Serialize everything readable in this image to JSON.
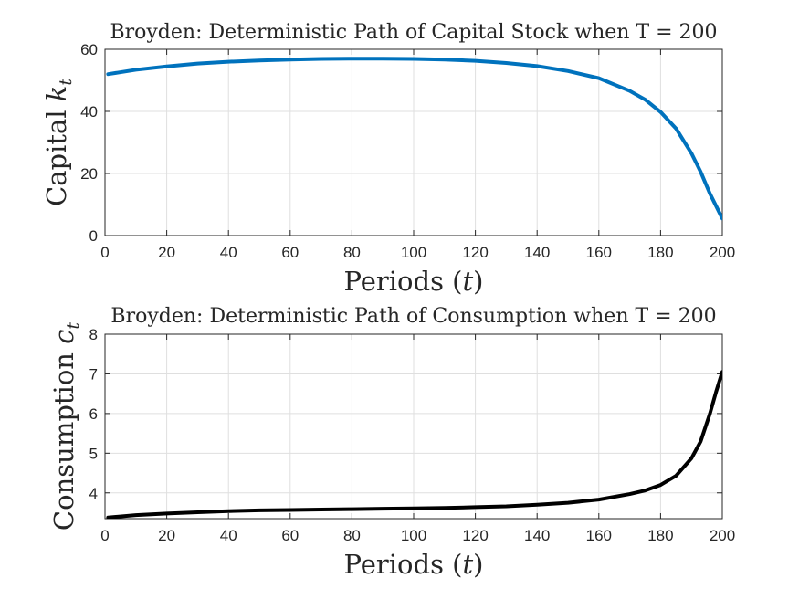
{
  "chart_data": [
    {
      "type": "line",
      "title": "Broyden: Deterministic Path of Capital Stock when T = 200",
      "xlabel_text": "Periods (",
      "xlabel_math": "t",
      "xlabel_suffix": ")",
      "ylabel_text": "Capital ",
      "ylabel_math": "k",
      "ylabel_sub": "t",
      "xlim": [
        0,
        200
      ],
      "ylim": [
        0,
        60
      ],
      "xticks": [
        0,
        20,
        40,
        60,
        80,
        100,
        120,
        140,
        160,
        180,
        200
      ],
      "yticks": [
        0,
        20,
        40,
        60
      ],
      "grid": true,
      "series": [
        {
          "color": "#0072BD",
          "x": [
            1,
            10,
            20,
            30,
            40,
            50,
            60,
            70,
            80,
            90,
            100,
            110,
            120,
            130,
            140,
            150,
            160,
            170,
            175,
            180,
            185,
            190,
            193,
            196,
            198,
            200
          ],
          "y": [
            52,
            53.4,
            54.5,
            55.4,
            56,
            56.4,
            56.7,
            56.9,
            57,
            57,
            56.9,
            56.7,
            56.3,
            55.6,
            54.6,
            53,
            50.7,
            46.6,
            43.8,
            39.8,
            34.5,
            26.5,
            20.5,
            13.5,
            9.5,
            5.5
          ]
        }
      ]
    },
    {
      "type": "line",
      "title": "Broyden: Deterministic Path of Consumption when T = 200",
      "xlabel_text": "Periods (",
      "xlabel_math": "t",
      "xlabel_suffix": ")",
      "ylabel_text": "Consumption ",
      "ylabel_math": "c",
      "ylabel_sub": "t",
      "xlim": [
        0,
        200
      ],
      "ylim": [
        3.35,
        8
      ],
      "xticks": [
        0,
        20,
        40,
        60,
        80,
        100,
        120,
        140,
        160,
        180,
        200
      ],
      "yticks": [
        4,
        5,
        6,
        7,
        8
      ],
      "grid": true,
      "series": [
        {
          "color": "#000000",
          "x": [
            1,
            10,
            20,
            30,
            40,
            50,
            60,
            70,
            80,
            90,
            100,
            110,
            120,
            130,
            140,
            150,
            160,
            170,
            175,
            180,
            185,
            190,
            193,
            196,
            198,
            200
          ],
          "y": [
            3.38,
            3.44,
            3.48,
            3.51,
            3.54,
            3.56,
            3.57,
            3.58,
            3.59,
            3.6,
            3.61,
            3.62,
            3.64,
            3.66,
            3.7,
            3.75,
            3.83,
            3.97,
            4.06,
            4.2,
            4.43,
            4.87,
            5.3,
            6.0,
            6.55,
            7.05
          ]
        }
      ]
    }
  ]
}
